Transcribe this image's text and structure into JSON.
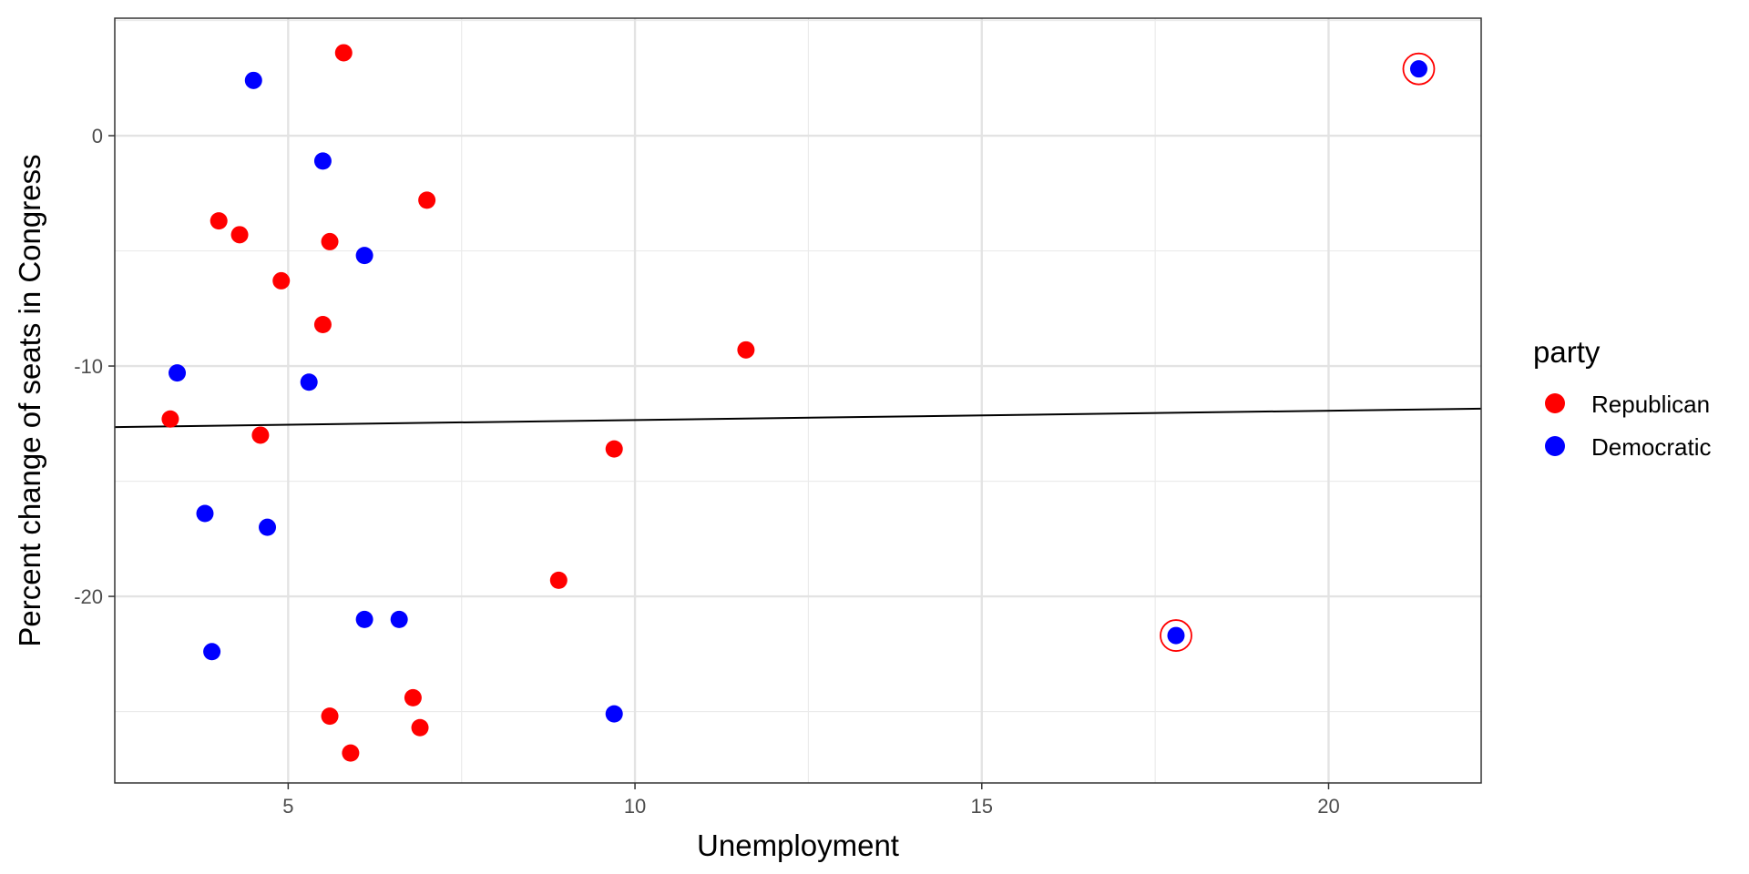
{
  "chart_data": {
    "type": "scatter",
    "title": "",
    "xlabel": "Unemployment",
    "ylabel": "Percent change of seats in Congress",
    "xlim": [
      2.5,
      22.2
    ],
    "ylim": [
      -28.1,
      5.1
    ],
    "x_ticks": [
      5,
      10,
      15,
      20
    ],
    "x_tick_labels": [
      "5",
      "10",
      "15",
      "20"
    ],
    "y_ticks": [
      0,
      -10,
      -20
    ],
    "y_tick_labels": [
      "0",
      "-10",
      "-20"
    ],
    "grid": true,
    "legend": {
      "title": "party",
      "position": "right",
      "entries": [
        {
          "label": "Republican",
          "color": "#ff0000"
        },
        {
          "label": "Democratic",
          "color": "#0000ff"
        }
      ]
    },
    "series": [
      {
        "name": "Republican",
        "color": "#ff0000",
        "points": [
          {
            "x": 5.8,
            "y": 3.6
          },
          {
            "x": 7.0,
            "y": -2.8
          },
          {
            "x": 4.0,
            "y": -3.7
          },
          {
            "x": 4.3,
            "y": -4.3
          },
          {
            "x": 5.6,
            "y": -4.6
          },
          {
            "x": 4.9,
            "y": -6.3
          },
          {
            "x": 5.5,
            "y": -8.2
          },
          {
            "x": 11.6,
            "y": -9.3
          },
          {
            "x": 3.3,
            "y": -12.3
          },
          {
            "x": 4.6,
            "y": -13.0
          },
          {
            "x": 9.7,
            "y": -13.6
          },
          {
            "x": 8.9,
            "y": -19.3
          },
          {
            "x": 6.8,
            "y": -24.4
          },
          {
            "x": 5.6,
            "y": -25.2
          },
          {
            "x": 6.9,
            "y": -25.7
          },
          {
            "x": 5.9,
            "y": -26.8
          }
        ]
      },
      {
        "name": "Democratic",
        "color": "#0000ff",
        "points": [
          {
            "x": 21.3,
            "y": 2.9
          },
          {
            "x": 4.5,
            "y": 2.4
          },
          {
            "x": 5.5,
            "y": -1.1
          },
          {
            "x": 6.1,
            "y": -5.2
          },
          {
            "x": 3.4,
            "y": -10.3
          },
          {
            "x": 5.3,
            "y": -10.7
          },
          {
            "x": 3.8,
            "y": -16.4
          },
          {
            "x": 4.7,
            "y": -17.0
          },
          {
            "x": 6.1,
            "y": -21.0
          },
          {
            "x": 6.6,
            "y": -21.0
          },
          {
            "x": 17.8,
            "y": -21.7
          },
          {
            "x": 3.9,
            "y": -22.4
          },
          {
            "x": 9.7,
            "y": -25.1
          }
        ]
      }
    ],
    "highlighted": [
      {
        "x": 21.3,
        "y": 2.9,
        "ring_color": "#ff0000"
      },
      {
        "x": 17.8,
        "y": -21.7,
        "ring_color": "#ff0000"
      }
    ],
    "trend_line": {
      "x": [
        2.5,
        22.2
      ],
      "y": [
        -12.65,
        -11.85
      ],
      "color": "#000000"
    }
  }
}
